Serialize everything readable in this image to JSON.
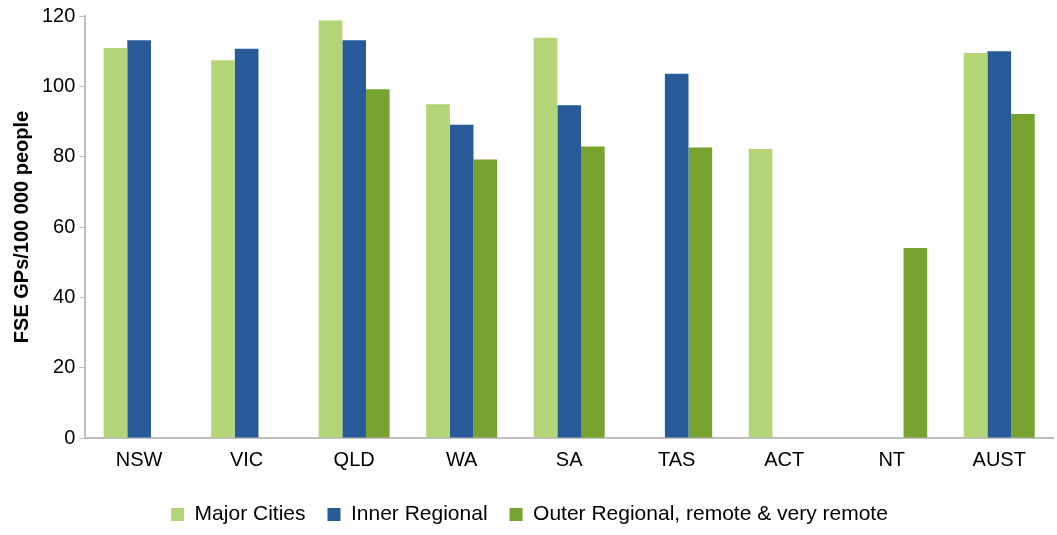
{
  "chart_data": {
    "type": "bar",
    "ylabel": "FSE GPs/100 000 people",
    "categories": [
      "NSW",
      "VIC",
      "QLD",
      "WA",
      "SA",
      "TAS",
      "ACT",
      "NT",
      "AUST"
    ],
    "series": [
      {
        "name": "Major Cities",
        "color": "#b3d577",
        "values": [
          110.9,
          107.4,
          118.7,
          94.9,
          113.8,
          null,
          82.2,
          null,
          109.5
        ]
      },
      {
        "name": "Inner Regional",
        "color": "#285a99",
        "values": [
          113.1,
          110.7,
          113.1,
          89.1,
          94.6,
          103.6,
          null,
          null,
          110.0
        ]
      },
      {
        "name": "Outer Regional, remote & very remote",
        "color": "#78a22f",
        "values": [
          null,
          null,
          99.2,
          79.2,
          82.9,
          82.6,
          null,
          54.0,
          92.1
        ]
      }
    ],
    "ylim": [
      0,
      120
    ],
    "yticks": [
      0,
      20,
      40,
      60,
      80,
      100,
      120
    ],
    "grid": false,
    "legend": "bottom"
  }
}
